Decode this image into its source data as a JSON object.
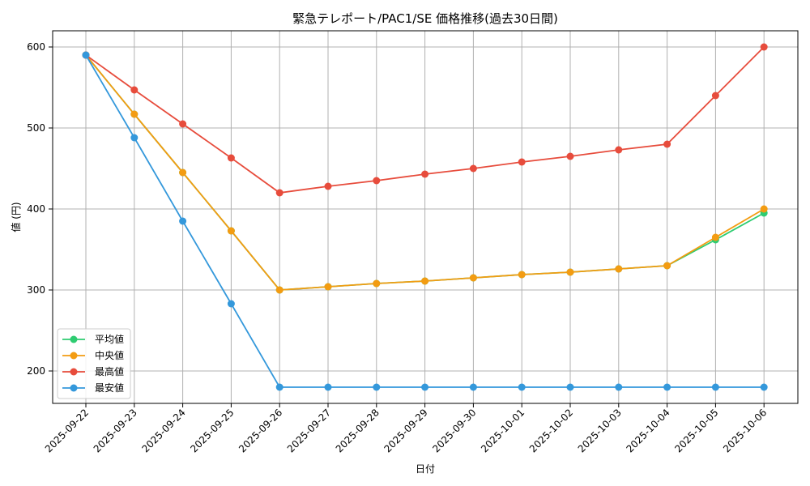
{
  "chart_data": {
    "type": "line",
    "title": "緊急テレポート/PAC1/SE 価格推移(過去30日間)",
    "xlabel": "日付",
    "ylabel": "値 (円)",
    "categories": [
      "2025-09-22",
      "2025-09-23",
      "2025-09-24",
      "2025-09-25",
      "2025-09-26",
      "2025-09-27",
      "2025-09-28",
      "2025-09-29",
      "2025-09-30",
      "2025-10-01",
      "2025-10-02",
      "2025-10-03",
      "2025-10-04",
      "2025-10-05",
      "2025-10-06"
    ],
    "ylim": [
      160,
      620
    ],
    "yticks": [
      200,
      300,
      400,
      500,
      600
    ],
    "grid": true,
    "legend_position": "lower-left",
    "series": [
      {
        "name": "平均値",
        "color": "#2ecc71",
        "values": [
          590,
          517,
          445,
          373,
          300,
          304,
          308,
          311,
          315,
          319,
          322,
          326,
          330,
          362,
          395
        ]
      },
      {
        "name": "中央値",
        "color": "#f39c12",
        "values": [
          590,
          517,
          445,
          373,
          300,
          304,
          308,
          311,
          315,
          319,
          322,
          326,
          330,
          365,
          400
        ]
      },
      {
        "name": "最高値",
        "color": "#e74c3c",
        "values": [
          590,
          547,
          505,
          463,
          420,
          428,
          435,
          443,
          450,
          458,
          465,
          473,
          480,
          540,
          600
        ]
      },
      {
        "name": "最安値",
        "color": "#3498db",
        "values": [
          590,
          488,
          385,
          283,
          180,
          180,
          180,
          180,
          180,
          180,
          180,
          180,
          180,
          180,
          180
        ]
      }
    ]
  }
}
